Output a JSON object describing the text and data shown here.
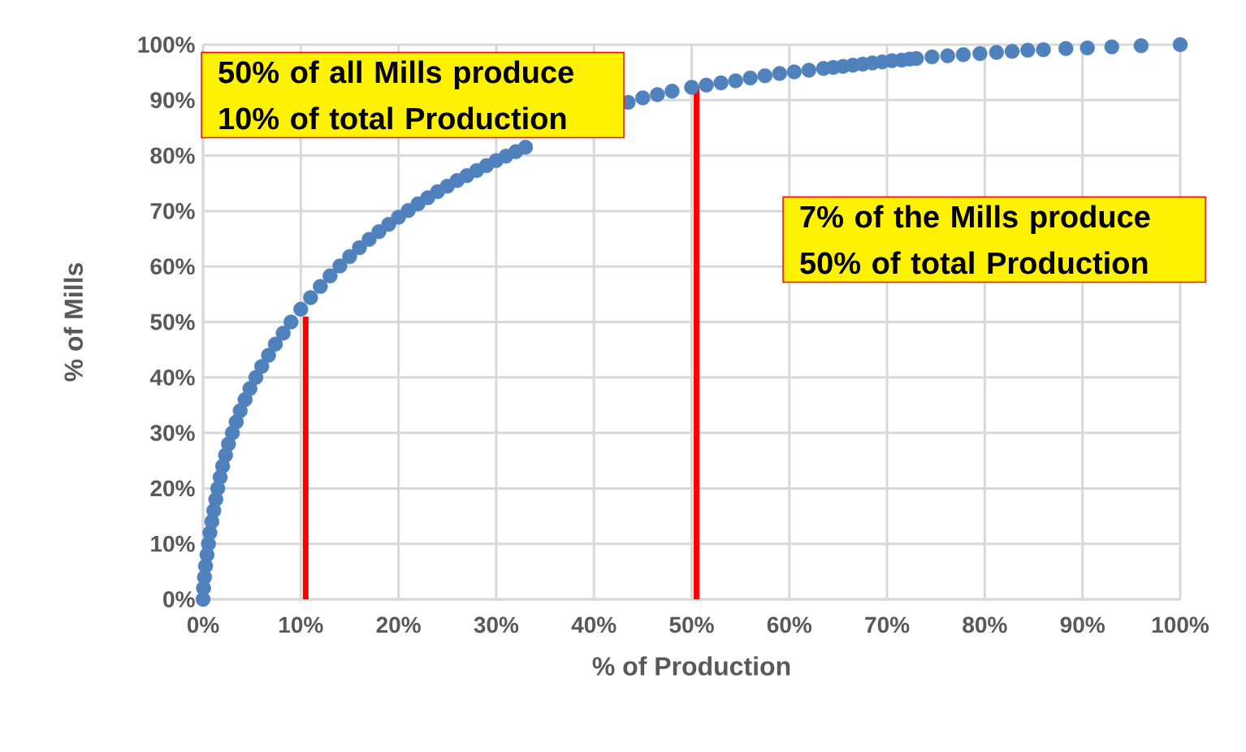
{
  "chart_data": {
    "type": "scatter",
    "xlabel": "% of Production",
    "ylabel": "% of Mills",
    "annotations": [
      "50% of all Mills produce 10% of total Production",
      "7% of the Mills produce 50% of total Production"
    ],
    "xlim": [
      0,
      100
    ],
    "ylim": [
      0,
      100
    ],
    "xticks": [
      {
        "value": 0,
        "label": "0%"
      },
      {
        "value": 10,
        "label": "10%"
      },
      {
        "value": 20,
        "label": "20%"
      },
      {
        "value": 30,
        "label": "30%"
      },
      {
        "value": 40,
        "label": "40%"
      },
      {
        "value": 50,
        "label": "50%"
      },
      {
        "value": 60,
        "label": "60%"
      },
      {
        "value": 70,
        "label": "70%"
      },
      {
        "value": 80,
        "label": "80%"
      },
      {
        "value": 90,
        "label": "90%"
      },
      {
        "value": 100,
        "label": "100%"
      }
    ],
    "yticks": [
      {
        "value": 0,
        "label": "0%"
      },
      {
        "value": 10,
        "label": "10%"
      },
      {
        "value": 20,
        "label": "20%"
      },
      {
        "value": 30,
        "label": "30%"
      },
      {
        "value": 40,
        "label": "40%"
      },
      {
        "value": 50,
        "label": "50%"
      },
      {
        "value": 60,
        "label": "60%"
      },
      {
        "value": 70,
        "label": "70%"
      },
      {
        "value": 80,
        "label": "80%"
      },
      {
        "value": 90,
        "label": "90%"
      },
      {
        "value": 100,
        "label": "100%"
      }
    ],
    "grid": true,
    "marker": "circle",
    "series": [
      {
        "color": "#4f81bd",
        "x": [
          0,
          0.05,
          0.15,
          0.25,
          0.4,
          0.55,
          0.7,
          0.9,
          1.1,
          1.3,
          1.5,
          1.75,
          2.0,
          2.3,
          2.6,
          3.0,
          3.4,
          3.8,
          4.3,
          4.8,
          5.4,
          6.0,
          6.7,
          7.4,
          8.2,
          9.0,
          10,
          11,
          12,
          13,
          14,
          15,
          16,
          17,
          18,
          19,
          20,
          21,
          22,
          23,
          24,
          25,
          26,
          27,
          28,
          29,
          30,
          31,
          32,
          33,
          43.5,
          45,
          46.5,
          48,
          50,
          51.5,
          53,
          54.5,
          56,
          57.5,
          59,
          60.5,
          62,
          63.5,
          64.5,
          65.5,
          66.5,
          67.5,
          68.5,
          69.5,
          70.5,
          71.5,
          72.3,
          73,
          74.6,
          76.2,
          77.8,
          79.5,
          81.2,
          82.8,
          84.4,
          86,
          88.3,
          90.5,
          93,
          96,
          100
        ],
        "values": [
          0,
          2,
          4,
          6,
          8,
          10,
          12,
          14,
          16,
          18,
          20,
          22,
          24,
          26,
          28,
          30,
          32,
          34,
          36,
          38,
          40,
          42,
          44,
          46,
          48,
          50,
          52.3,
          54.4,
          56.4,
          58.3,
          60.1,
          61.8,
          63.4,
          64.9,
          66.3,
          67.6,
          68.9,
          70.1,
          71.3,
          72.4,
          73.5,
          74.5,
          75.5,
          76.4,
          77.3,
          78.2,
          79.1,
          79.9,
          80.7,
          81.5,
          89.6,
          90.4,
          91,
          91.6,
          92.3,
          92.7,
          93.1,
          93.5,
          94,
          94.4,
          94.8,
          95.1,
          95.4,
          95.7,
          95.9,
          96.1,
          96.3,
          96.5,
          96.7,
          96.9,
          97.1,
          97.2,
          97.4,
          97.5,
          97.8,
          98,
          98.2,
          98.4,
          98.6,
          98.8,
          99,
          99.1,
          99.3,
          99.4,
          99.6,
          99.8,
          100
        ]
      },
      {
        "type": "line",
        "marker": "none",
        "color": "#ff0000",
        "x": [
          10.5,
          10.5
        ],
        "values": [
          0,
          51
        ]
      },
      {
        "type": "line",
        "marker": "none",
        "color": "#ff0000",
        "x": [
          50.5,
          50.5
        ],
        "values": [
          0,
          92.5
        ]
      }
    ]
  }
}
